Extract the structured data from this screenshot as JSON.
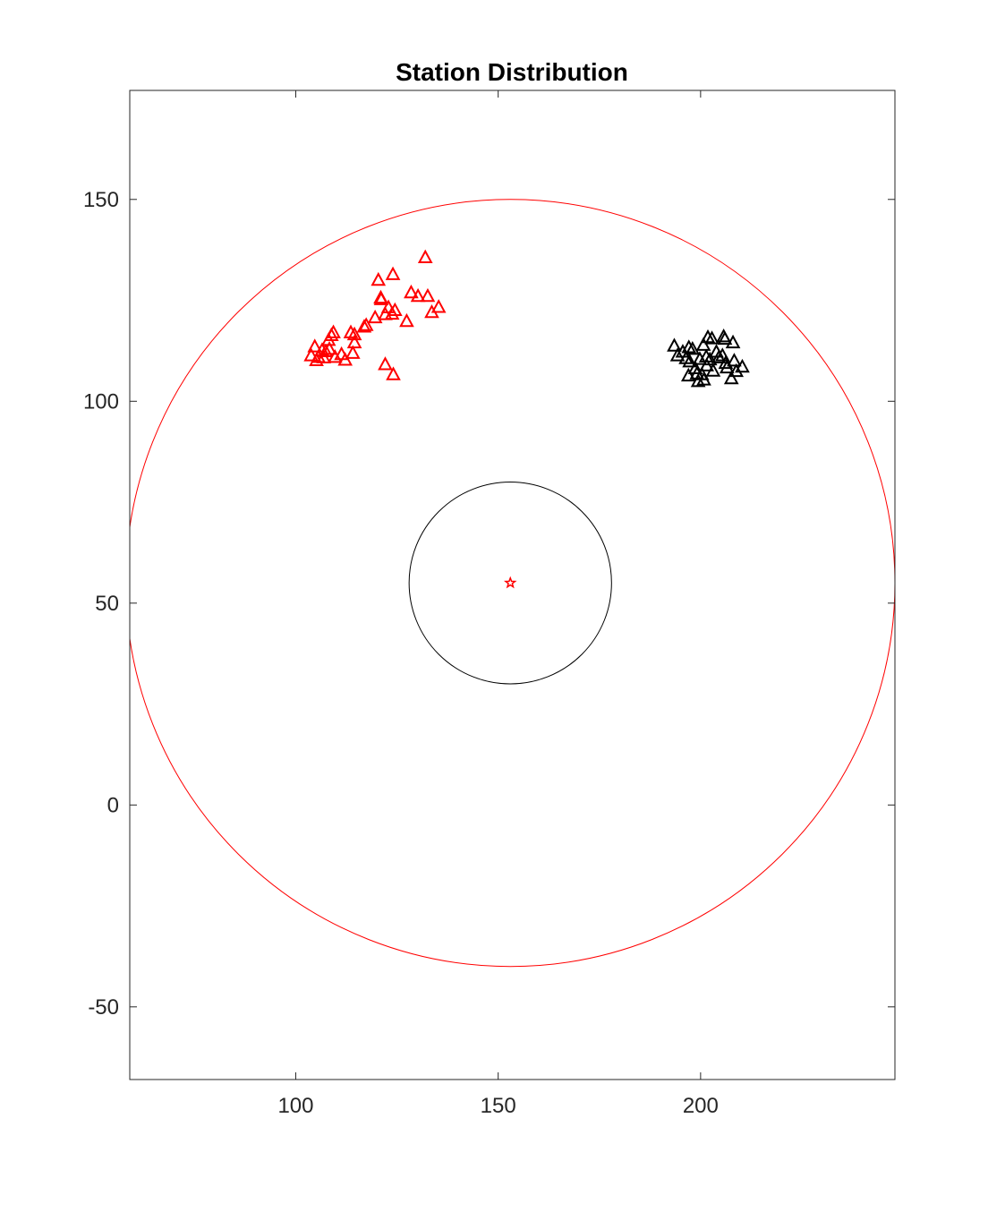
{
  "chart_data": {
    "type": "scatter",
    "title": "Station Distribution",
    "xlabel": "",
    "ylabel": "",
    "xlim": [
      59,
      248
    ],
    "ylim": [
      -68,
      177
    ],
    "xticks": [
      100,
      150,
      200
    ],
    "yticks": [
      -50,
      0,
      50,
      100,
      150
    ],
    "grid": false,
    "box": true,
    "center": {
      "x": 153,
      "y": 55,
      "marker": "star",
      "color": "#ff0000"
    },
    "circles": [
      {
        "name": "outer-radius",
        "cx": 153,
        "cy": 55,
        "r": 95,
        "color": "#ff0000"
      },
      {
        "name": "inner-radius",
        "cx": 153,
        "cy": 55,
        "r": 25,
        "color": "#000000"
      }
    ],
    "series": [
      {
        "name": "red-stations",
        "marker": "triangle",
        "color": "#ff0000",
        "points": [
          [
            104.7,
            113.5
          ],
          [
            103.8,
            111.3
          ],
          [
            105.6,
            110.9
          ],
          [
            106.5,
            112.6
          ],
          [
            107.4,
            112.3
          ],
          [
            106.9,
            110.8
          ],
          [
            105.1,
            110.1
          ],
          [
            108.1,
            115.1
          ],
          [
            108.8,
            116.3
          ],
          [
            109.3,
            117.0
          ],
          [
            108.3,
            112.9
          ],
          [
            109.7,
            110.9
          ],
          [
            111.3,
            111.6
          ],
          [
            112.2,
            110.2
          ],
          [
            113.6,
            117.0
          ],
          [
            114.5,
            116.5
          ],
          [
            114.5,
            114.5
          ],
          [
            114.1,
            111.9
          ],
          [
            116.9,
            118.4
          ],
          [
            117.4,
            118.8
          ],
          [
            119.6,
            120.7
          ],
          [
            121.0,
            125.6
          ],
          [
            120.4,
            130.0
          ],
          [
            121.1,
            125.2
          ],
          [
            122.1,
            121.5
          ],
          [
            122.9,
            123.2
          ],
          [
            123.8,
            121.6
          ],
          [
            124.5,
            122.5
          ],
          [
            124.0,
            131.4
          ],
          [
            127.4,
            119.8
          ],
          [
            128.5,
            126.9
          ],
          [
            130.2,
            126.0
          ],
          [
            132.6,
            126.0
          ],
          [
            132.0,
            135.6
          ],
          [
            133.6,
            122.0
          ],
          [
            135.3,
            123.3
          ],
          [
            122.1,
            109.1
          ],
          [
            124.1,
            106.6
          ]
        ]
      },
      {
        "name": "black-stations",
        "marker": "triangle",
        "color": "#000000",
        "points": [
          [
            193.5,
            113.7
          ],
          [
            194.3,
            111.3
          ],
          [
            195.6,
            112.2
          ],
          [
            197.1,
            113.3
          ],
          [
            198.0,
            112.9
          ],
          [
            196.4,
            110.6
          ],
          [
            197.3,
            109.8
          ],
          [
            198.7,
            108.1
          ],
          [
            197.0,
            106.3
          ],
          [
            199.1,
            106.8
          ],
          [
            200.3,
            106.6
          ],
          [
            200.8,
            105.3
          ],
          [
            199.4,
            104.9
          ],
          [
            201.5,
            108.8
          ],
          [
            201.4,
            111.0
          ],
          [
            200.7,
            113.9
          ],
          [
            201.8,
            115.8
          ],
          [
            202.8,
            115.5
          ],
          [
            203.9,
            112.2
          ],
          [
            204.5,
            110.8
          ],
          [
            205.4,
            111.3
          ],
          [
            206.2,
            109.4
          ],
          [
            206.5,
            108.3
          ],
          [
            205.7,
            116.0
          ],
          [
            206.0,
            115.4
          ],
          [
            208.0,
            114.5
          ],
          [
            208.3,
            110.0
          ],
          [
            208.8,
            107.4
          ],
          [
            210.3,
            108.5
          ],
          [
            207.6,
            105.6
          ],
          [
            203.1,
            107.5
          ],
          [
            202.3,
            110.3
          ],
          [
            199.8,
            110.4
          ]
        ]
      }
    ]
  }
}
